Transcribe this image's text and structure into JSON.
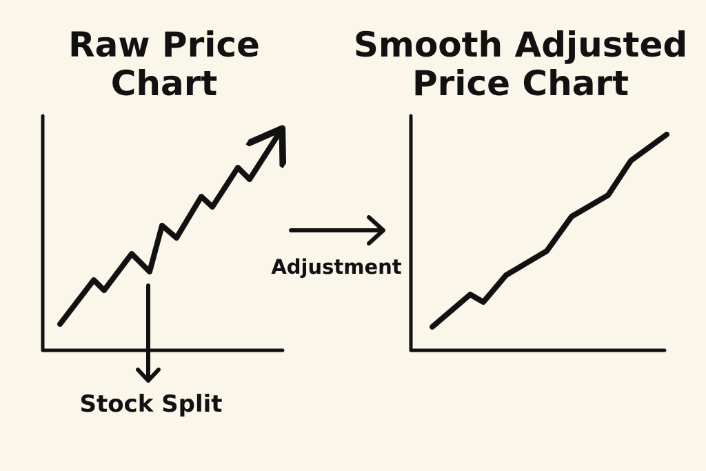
{
  "left_panel": {
    "title_line1": "Raw Price",
    "title_line2": "Chart",
    "event_label": "Stock Split"
  },
  "transition": {
    "label": "Adjustment"
  },
  "right_panel": {
    "title_line1": "Smooth Adjusted",
    "title_line2": "Price Chart"
  },
  "colors": {
    "background": "#fbf6ea",
    "ink": "#111111"
  }
}
